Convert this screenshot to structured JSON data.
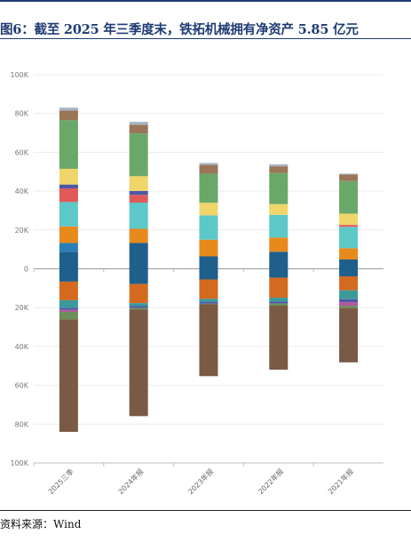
{
  "header": {
    "title": "图6：截至 2025 年三季度末，铁拓机械拥有净资产 5.85 亿元"
  },
  "footer": {
    "source": "资料来源：Wind"
  },
  "colors": {
    "title": "#1f3b73",
    "segments": [
      "#1f5f8b",
      "#2b7fb8",
      "#e8891c",
      "#5cc8c8",
      "#e05a5a",
      "#4e57a8",
      "#f0d56a",
      "#6aa86a",
      "#9a7558",
      "#a9b3c2",
      "#8b5fb0",
      "#d46a1f",
      "#3b9a9a",
      "#6b8f5a",
      "#7a5a45",
      "#b05a9a"
    ]
  },
  "chart_data": {
    "type": "bar",
    "stacked": true,
    "categories": [
      "2025三季",
      "2024年报",
      "2023年报",
      "2022年报",
      "2021年报"
    ],
    "y_tick_labels": [
      "100K",
      "80K",
      "60K",
      "40K",
      "20K",
      "0",
      "20K",
      "40K",
      "60K",
      "80K",
      "100K"
    ],
    "ylim": [
      -100000,
      100000
    ],
    "grid": true,
    "legend": "none",
    "positive_stack": [
      [
        8800,
        4500,
        8500,
        12600,
        7000,
        2000,
        8100,
        25000,
        5000,
        1500
      ],
      [
        13300,
        0,
        7300,
        13500,
        4000,
        2000,
        7600,
        22000,
        4500,
        1500
      ],
      [
        6400,
        0,
        8600,
        12500,
        0,
        0,
        6500,
        15000,
        4500,
        1000
      ],
      [
        8800,
        0,
        7300,
        11700,
        0,
        0,
        5500,
        16000,
        3500,
        1000
      ],
      [
        4800,
        0,
        5800,
        11000,
        1000,
        0,
        5800,
        16800,
        3300,
        500
      ]
    ],
    "negative_stack": [
      [
        -6600,
        -9600,
        -4000,
        -1000,
        -1000,
        -3800,
        -58000
      ],
      [
        -7900,
        -9800,
        -1500,
        -1000,
        0,
        -700,
        -55000
      ],
      [
        -5500,
        -10000,
        -1500,
        -1000,
        0,
        -300,
        -37000
      ],
      [
        -4600,
        -10300,
        -2000,
        -1000,
        0,
        -1100,
        -33000
      ],
      [
        -3900,
        -7200,
        -4600,
        -1500,
        -2000,
        -1000,
        -28000
      ]
    ]
  }
}
